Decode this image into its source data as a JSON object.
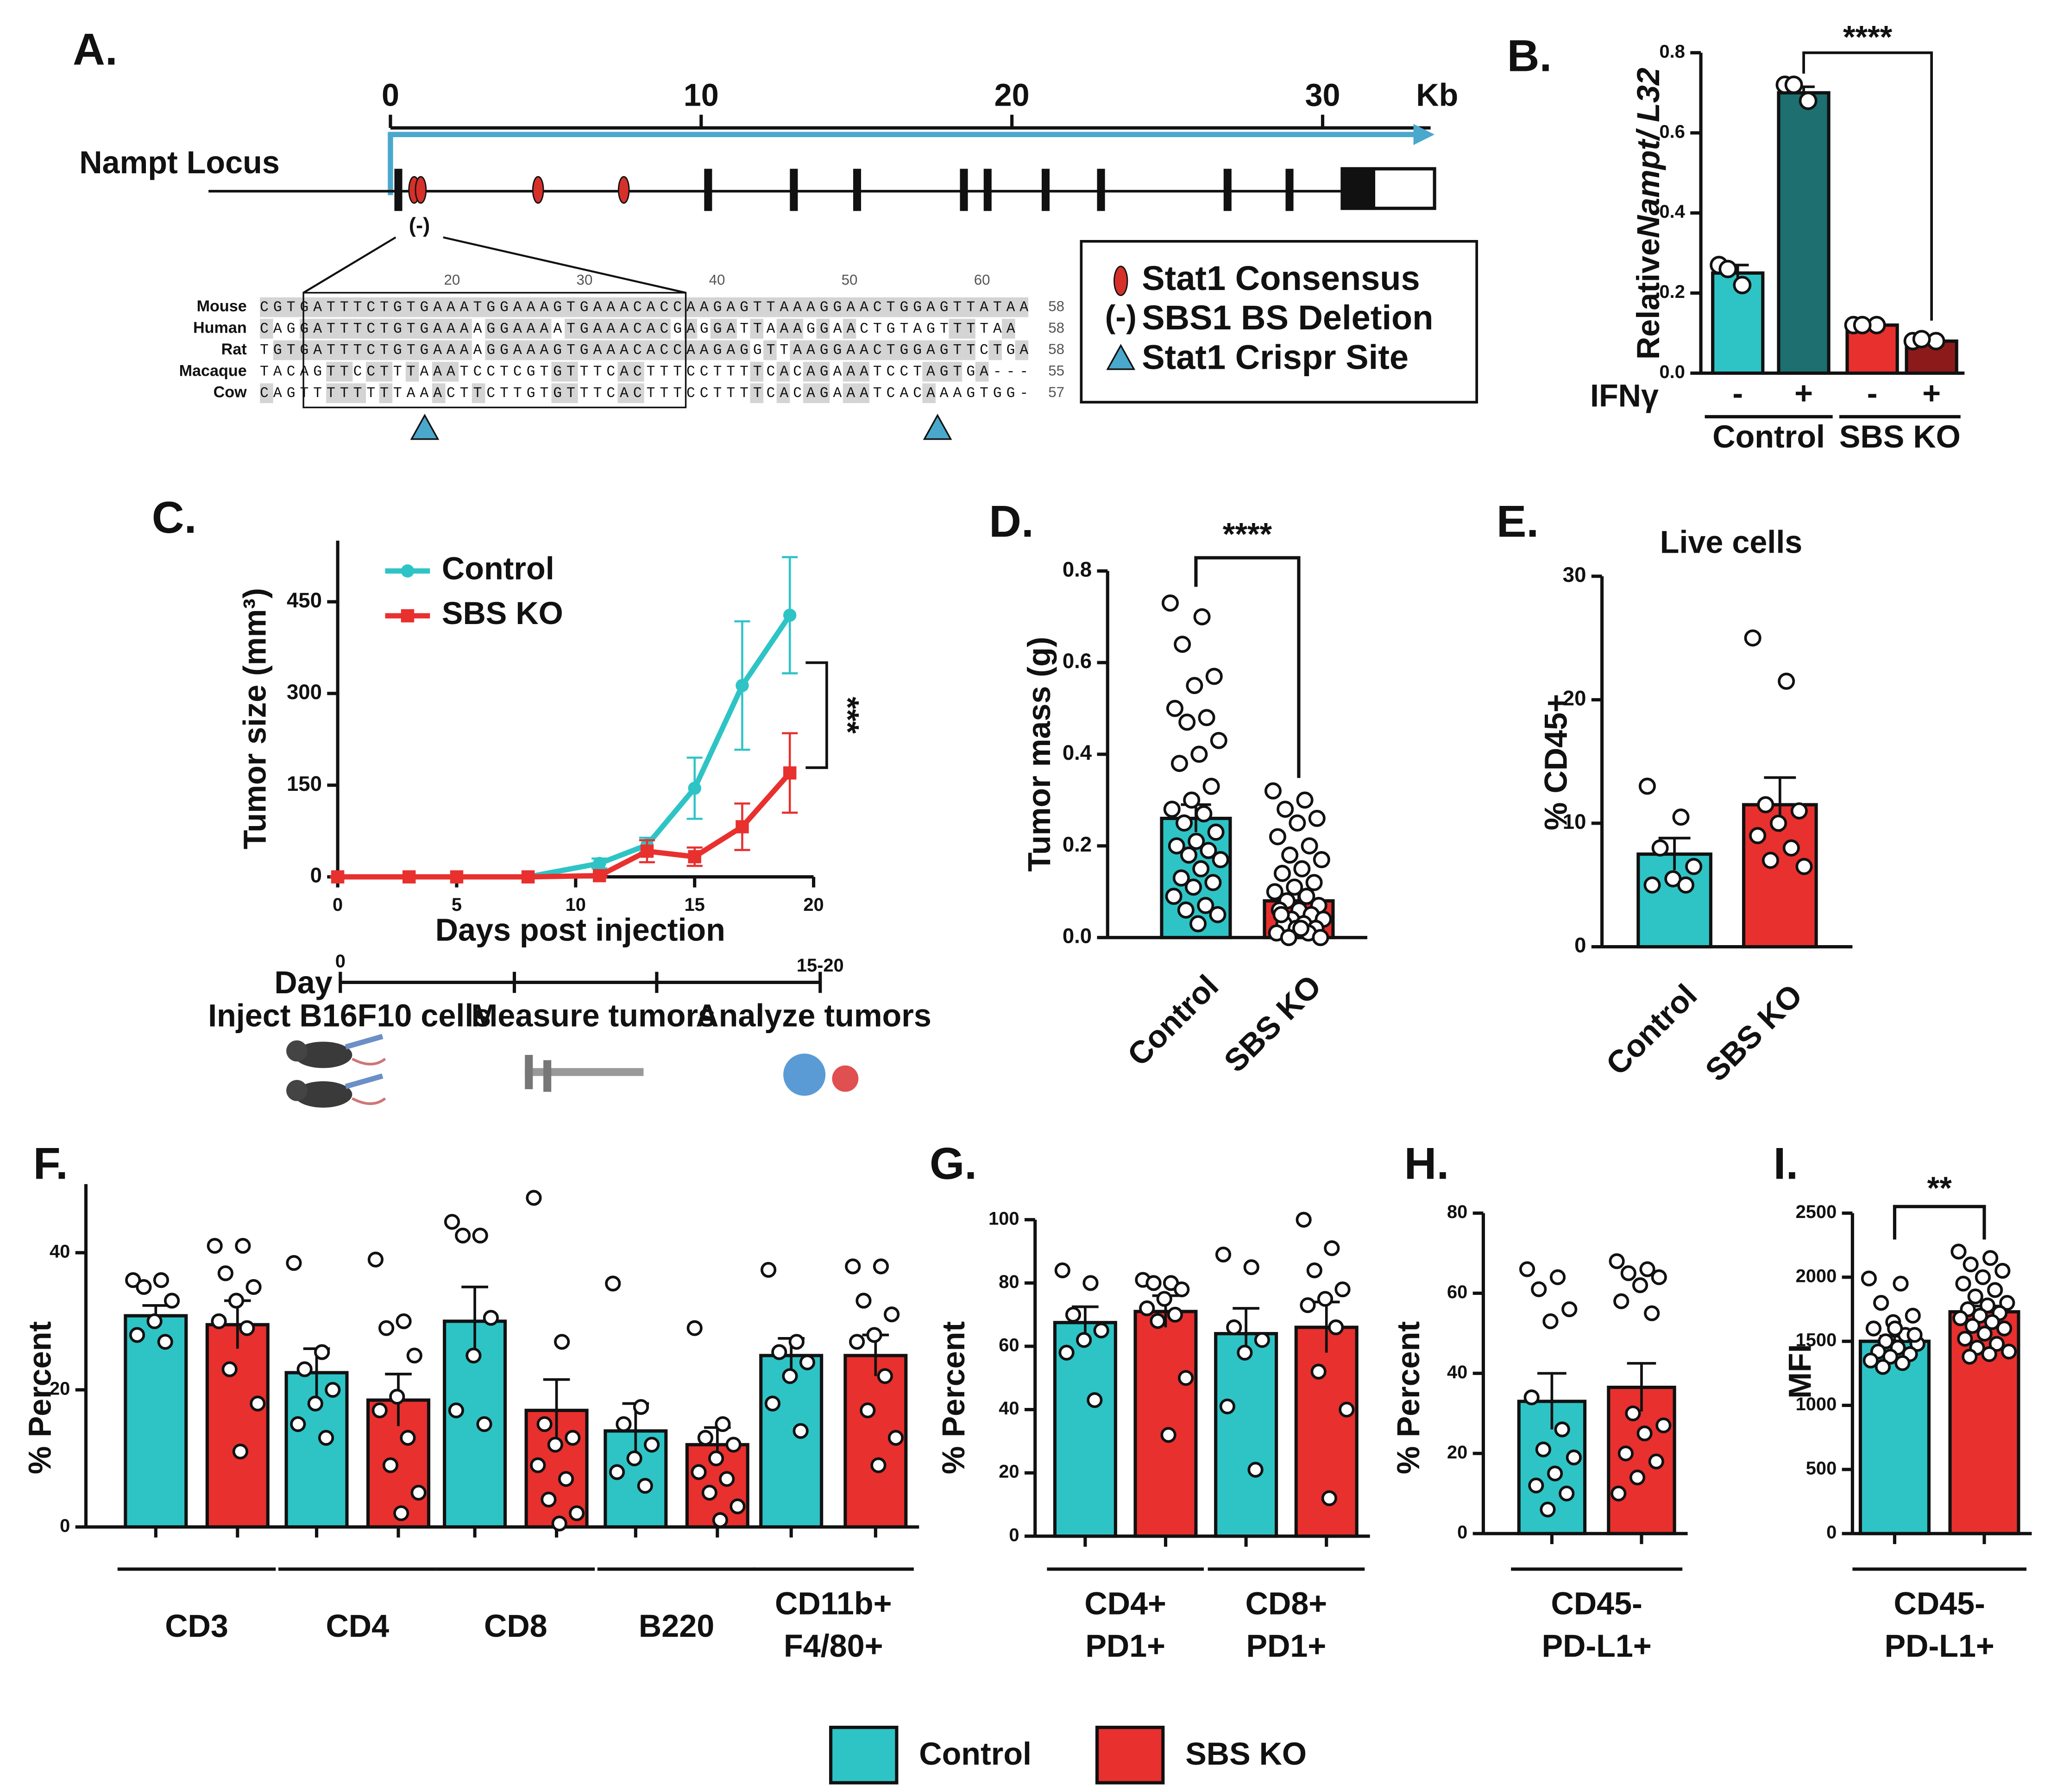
{
  "diagram": {
    "panel": "A.",
    "title": "Nampt Locus",
    "scale_ticks": [
      0,
      10,
      20,
      30
    ],
    "scale_unit": "Kb",
    "deletion_symbol": "(-)",
    "legend": [
      "Stat1 Consensus",
      "SBS1 BS Deletion",
      "Stat1 Crispr Site"
    ],
    "alignment": {
      "ruler": [
        20,
        30,
        40,
        50,
        60
      ],
      "rows": [
        {
          "species": "Mouse",
          "sequence": "CGTGATTTCTGTGAAATGGAAAGTGAAACACCAAGAGTTAAAGGAACTGGAGTTATAA",
          "length": 58
        },
        {
          "species": "Human",
          "sequence": "CAGGATTTCTGTGAAAAGGAAAATGAAACACGAGGATTAAAGGAACTGTAGTTTTAA",
          "length": 58
        },
        {
          "species": "Rat",
          "sequence": "TGTGATTTCTGTGAAAAGGAAAGTGAAACACCAAGAGGTTAAGGAACTGGAGTTCTGA",
          "length": 58
        },
        {
          "species": "Macaque",
          "sequence": "TACAGTTCCTTTAAATCCTCGTGTTTCACTTTCCTTTTCACAGAAATCCTAGTGA---",
          "length": 55
        },
        {
          "species": "Cow",
          "sequence": "CAGTTTTTTTTAAACTTCTTGTGTTTCACTTTCCTTTTCACAGAAATCACAAAGTGG-",
          "length": 57
        }
      ]
    }
  },
  "timeline": {
    "day_label": "Day",
    "ticks": [
      0,
      "15-20"
    ],
    "steps": [
      "Inject B16F10 cells",
      "Measure tumors",
      "Analyze tumors"
    ]
  },
  "chart_data": [
    {
      "type": "bar",
      "panel": "B.",
      "y_label_parts": [
        "Relative",
        "Nampt/ L32"
      ],
      "ylim": [
        0,
        0.8
      ],
      "yticks": [
        {
          "value": 0,
          "label": "0.0"
        },
        {
          "value": 0.2,
          "label": "0.2"
        },
        {
          "value": 0.4,
          "label": "0.4"
        },
        {
          "value": 0.6,
          "label": "0.6"
        },
        {
          "value": 0.8,
          "label": "0.8"
        }
      ],
      "categories": [
        "-",
        "+",
        "-",
        "+"
      ],
      "category_row_label": "IFNγ",
      "groups": [
        "Control",
        "SBS KO"
      ],
      "colors": [
        "#2ec4c6",
        "#1d6f70",
        "#e8302e",
        "#8c1a1a"
      ],
      "values": [
        0.25,
        0.7,
        0.12,
        0.08
      ],
      "errors": [
        0.02,
        0.015,
        0.005,
        0.005
      ],
      "points": [
        [
          0.27,
          0.22,
          0.26
        ],
        [
          0.72,
          0.68,
          0.72
        ],
        [
          0.12,
          0.12,
          0.12
        ],
        [
          0.08,
          0.08,
          0.085
        ]
      ],
      "significance": "****"
    },
    {
      "type": "line",
      "panel": "C.",
      "x_label": "Days post injection",
      "y_label": "Tumor size (mm³)",
      "xlim": [
        0,
        20
      ],
      "xticks": [
        0,
        5,
        10,
        15,
        20
      ],
      "ylim": [
        0,
        550
      ],
      "yticks": [
        0,
        150,
        300,
        450
      ],
      "x": [
        0,
        3,
        5,
        8,
        11,
        13,
        15,
        17,
        19
      ],
      "series": [
        {
          "name": "Control",
          "color": "#2ec4c6",
          "marker": "circle",
          "values": [
            0,
            0,
            0,
            0,
            22,
            52,
            145,
            313,
            428
          ],
          "errors": [
            0,
            0,
            0,
            0,
            8,
            12,
            50,
            105,
            95
          ]
        },
        {
          "name": "SBS KO",
          "color": "#e8302e",
          "marker": "square",
          "values": [
            0,
            0,
            0,
            0,
            2,
            42,
            33,
            82,
            170
          ],
          "errors": [
            0,
            0,
            0,
            0,
            2,
            18,
            15,
            38,
            65
          ]
        }
      ],
      "legend": "upper left",
      "significance": "***"
    },
    {
      "type": "bar",
      "panel": "D.",
      "y_label": "Tumor mass (g)",
      "ylim": [
        0,
        0.8
      ],
      "yticks": [
        {
          "value": 0,
          "label": "0.0"
        },
        {
          "value": 0.2,
          "label": "0.2"
        },
        {
          "value": 0.4,
          "label": "0.4"
        },
        {
          "value": 0.6,
          "label": "0.6"
        },
        {
          "value": 0.8,
          "label": "0.8"
        }
      ],
      "categories": [
        "Control",
        "SBS KO"
      ],
      "colors": [
        "#2ec4c6",
        "#e8302e"
      ],
      "values": [
        0.26,
        0.08
      ],
      "errors": [
        0.03,
        0.015
      ],
      "points": [
        [
          0.73,
          0.7,
          0.64,
          0.57,
          0.55,
          0.5,
          0.48,
          0.47,
          0.43,
          0.4,
          0.38,
          0.33,
          0.3,
          0.28,
          0.27,
          0.25,
          0.23,
          0.21,
          0.2,
          0.19,
          0.18,
          0.17,
          0.15,
          0.13,
          0.12,
          0.11,
          0.09,
          0.07,
          0.06,
          0.05,
          0.03
        ],
        [
          0.32,
          0.3,
          0.28,
          0.26,
          0.25,
          0.22,
          0.2,
          0.18,
          0.17,
          0.15,
          0.14,
          0.12,
          0.11,
          0.1,
          0.09,
          0.08,
          0.07,
          0.06,
          0.06,
          0.05,
          0.04,
          0.04,
          0.03,
          0.03,
          0.02,
          0.02,
          0.01,
          0.01,
          0,
          0,
          0.02,
          0.05
        ]
      ],
      "significance": "****"
    },
    {
      "type": "bar",
      "panel": "E.",
      "title": "Live cells",
      "y_label": "% CD45+",
      "ylim": [
        0,
        30
      ],
      "yticks": [
        0,
        10,
        20,
        30
      ],
      "categories": [
        "Control",
        "SBS KO"
      ],
      "colors": [
        "#2ec4c6",
        "#e8302e"
      ],
      "values": [
        7.5,
        11.5
      ],
      "errors": [
        1.3,
        2.2
      ],
      "points": [
        [
          13,
          10.5,
          8,
          6.5,
          5.5,
          5,
          5
        ],
        [
          25,
          21.5,
          11.5,
          11,
          10,
          9,
          8,
          7,
          6.5
        ]
      ]
    },
    {
      "type": "grouped_bar",
      "panel": "F.",
      "y_label": "% Percent",
      "ylim": [
        0,
        50
      ],
      "yticks": [
        0,
        20,
        40
      ],
      "categories": [
        [
          "CD3"
        ],
        [
          "CD4"
        ],
        [
          "CD8"
        ],
        [
          "B220"
        ],
        [
          "CD11b+",
          "F4/80+"
        ]
      ],
      "series": [
        {
          "color": "#2ec4c6",
          "values": [
            30.8,
            22.5,
            30,
            14,
            25
          ],
          "errors": [
            1.5,
            3.5,
            5,
            4,
            2.5
          ],
          "points": [
            [
              36,
              36,
              35,
              33,
              30,
              28,
              27
            ],
            [
              38.5,
              25.5,
              23,
              20,
              18,
              15,
              13
            ],
            [
              44.5,
              42.5,
              42.5,
              30.5,
              25,
              17,
              15
            ],
            [
              35.5,
              17.5,
              15,
              12,
              10,
              8,
              6
            ],
            [
              37.5,
              27,
              25.5,
              24,
              22,
              18,
              14
            ]
          ]
        },
        {
          "color": "#e8302e",
          "values": [
            29.5,
            18.5,
            17,
            12,
            25
          ],
          "errors": [
            3.5,
            3.8,
            4.5,
            2.5,
            3
          ],
          "points": [
            [
              41,
              41,
              37,
              35,
              33,
              30,
              29,
              23,
              18,
              11
            ],
            [
              39,
              30,
              29,
              25,
              19,
              17,
              13,
              9,
              5,
              2
            ],
            [
              48,
              27,
              15,
              13,
              12,
              9,
              7,
              4,
              2,
              0.5
            ],
            [
              29,
              15,
              13,
              12,
              10,
              8,
              7,
              5,
              3,
              1
            ],
            [
              38,
              38,
              33,
              31,
              28,
              27,
              22,
              17,
              13,
              9
            ]
          ]
        }
      ]
    },
    {
      "type": "grouped_bar",
      "panel": "G.",
      "y_label": "% Percent",
      "ylim": [
        0,
        100
      ],
      "yticks": [
        0,
        20,
        40,
        60,
        80,
        100
      ],
      "categories": [
        [
          "CD4+",
          "PD1+"
        ],
        [
          "CD8+",
          "PD1+"
        ]
      ],
      "series": [
        {
          "color": "#2ec4c6",
          "values": [
            67.5,
            64
          ],
          "errors": [
            5,
            8
          ],
          "points": [
            [
              84,
              80,
              70,
              65,
              62,
              58,
              43
            ],
            [
              89,
              85,
              66,
              62,
              58,
              41,
              21
            ]
          ]
        },
        {
          "color": "#e8302e",
          "values": [
            71,
            66
          ],
          "errors": [
            5,
            8
          ],
          "points": [
            [
              81,
              80,
              80,
              78,
              75,
              72,
              70,
              68,
              50,
              32
            ],
            [
              100,
              91,
              84,
              78,
              75,
              73,
              66,
              52,
              40,
              12
            ]
          ]
        }
      ]
    },
    {
      "type": "grouped_bar",
      "panel": "H.",
      "y_label": "% Percent",
      "ylim": [
        0,
        80
      ],
      "yticks": [
        0,
        20,
        40,
        60,
        80
      ],
      "categories": [
        [
          "CD45-",
          "PD-L1+"
        ]
      ],
      "series": [
        {
          "color": "#2ec4c6",
          "values": [
            33
          ],
          "errors": [
            7
          ],
          "points": [
            [
              66,
              64,
              61,
              56,
              53,
              34,
              26,
              21,
              19,
              15,
              12,
              10,
              6
            ]
          ]
        },
        {
          "color": "#e8302e",
          "values": [
            36.5
          ],
          "errors": [
            6
          ],
          "points": [
            [
              68,
              66,
              65,
              64,
              62,
              58,
              55,
              30,
              27,
              25,
              20,
              18,
              14,
              10
            ]
          ]
        }
      ]
    },
    {
      "type": "grouped_bar",
      "panel": "I.",
      "y_label": "MFI",
      "ylim": [
        0,
        2500
      ],
      "yticks": [
        0,
        500,
        1000,
        1500,
        2000,
        2500
      ],
      "categories": [
        [
          "CD45-",
          "PD-L1+"
        ]
      ],
      "series": [
        {
          "color": "#2ec4c6",
          "values": [
            1500
          ],
          "errors": [
            40
          ],
          "points": [
            [
              1990,
              1950,
              1800,
              1700,
              1650,
              1600,
              1550,
              1500,
              1480,
              1450,
              1420,
              1400,
              1380,
              1350,
              1330,
              1300,
              1550,
              1600
            ]
          ]
        },
        {
          "color": "#e8302e",
          "values": [
            1730
          ],
          "errors": [
            45
          ],
          "points": [
            [
              2200,
              2150,
              2100,
              2050,
              2000,
              1950,
              1900,
              1850,
              1800,
              1780,
              1750,
              1720,
              1700,
              1680,
              1650,
              1620,
              1600,
              1560,
              1520,
              1480,
              1450,
              1420,
              1400,
              1380
            ]
          ]
        }
      ],
      "significance": "**"
    }
  ],
  "legend": {
    "entries": [
      {
        "name": "Control",
        "color": "#2ec4c6"
      },
      {
        "name": "SBS KO",
        "color": "#e8302e"
      }
    ]
  }
}
